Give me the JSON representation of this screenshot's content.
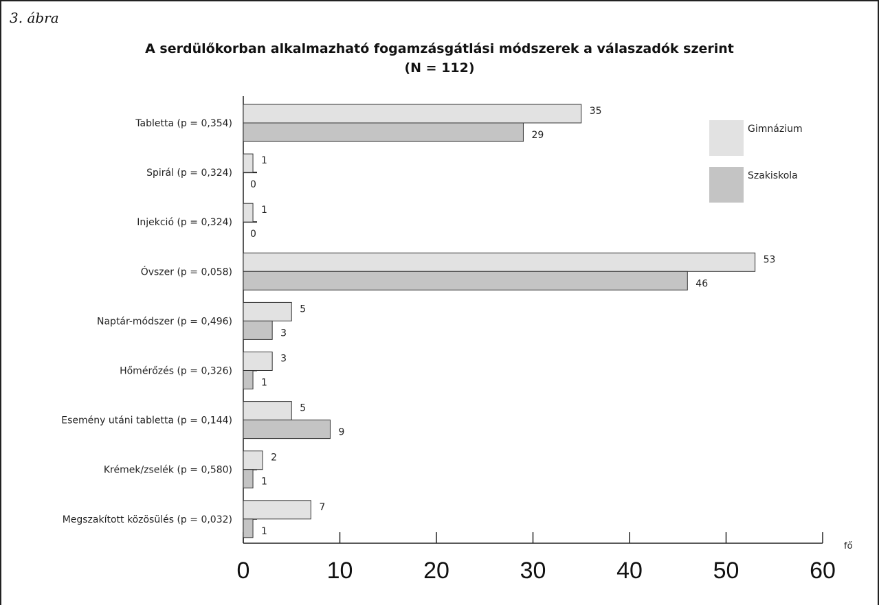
{
  "figure_label": "3. ábra",
  "chart_data": {
    "type": "bar",
    "orientation": "horizontal",
    "title_line1": "A serdülőkorban alkalmazható fogamzásgátlási módszerek a válaszadók szerint",
    "title_line2": "(N = 112)",
    "categories": [
      "Tabletta  (p = 0,354)",
      "Spirál  (p = 0,324)",
      "Injekció  (p = 0,324)",
      "Óvszer  (p = 0,058)",
      "Naptár-módszer  (p = 0,496)",
      "Hőmérőzés  (p = 0,326)",
      "Esemény utáni tabletta  (p = 0,144)",
      "Krémek/zselék  (p = 0,580)",
      "Megszakított közösülés  (p = 0,032)"
    ],
    "series": [
      {
        "name": "Gimnázium",
        "color": "#e2e2e2",
        "values": [
          35,
          1,
          1,
          53,
          5,
          3,
          5,
          2,
          7
        ]
      },
      {
        "name": "Szakiskola",
        "color": "#c4c4c4",
        "values": [
          29,
          0,
          0,
          46,
          3,
          1,
          9,
          1,
          1
        ]
      }
    ],
    "xlim": [
      0,
      60
    ],
    "xticks": [
      "0",
      "10",
      "20",
      "30",
      "40",
      "50",
      "60"
    ],
    "xunit": "fő",
    "legend_position": "top-right",
    "grid": false
  }
}
